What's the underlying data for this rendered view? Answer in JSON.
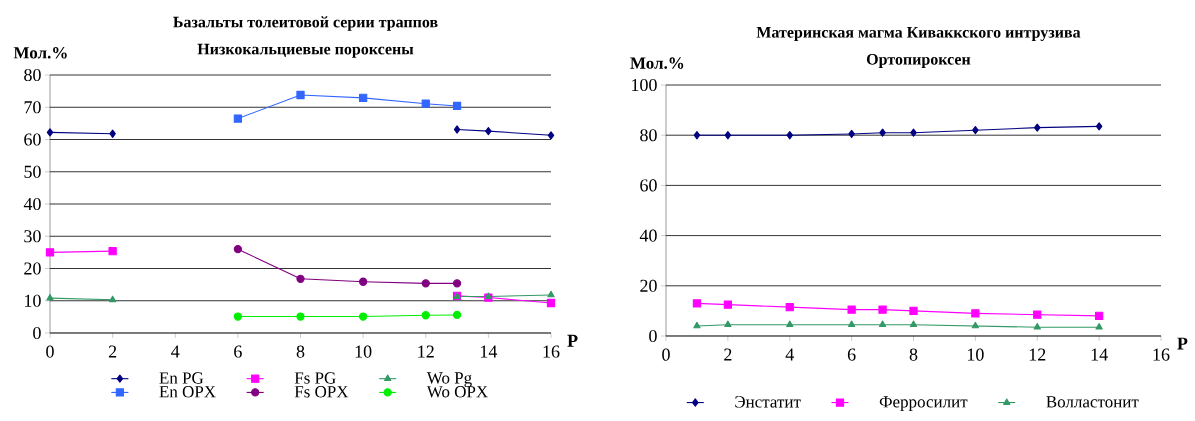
{
  "chart_data": [
    {
      "type": "line",
      "title": "Ьазальты толеитовой серии траппов",
      "subtitle": "Низкокальциевые пороксены",
      "xlabel": "P",
      "ylabel": "Мол.%",
      "x": [
        0,
        2,
        6,
        8,
        10,
        12,
        13,
        14,
        16
      ],
      "xlim": [
        0,
        16
      ],
      "ylim": [
        0,
        80
      ],
      "xticks": [
        0,
        2,
        4,
        6,
        8,
        10,
        12,
        14,
        16
      ],
      "yticks": [
        0,
        10,
        20,
        30,
        40,
        50,
        60,
        70,
        80
      ],
      "grid": "y",
      "legend": "bottom",
      "series": [
        {
          "name": "En PG",
          "color": "#000080",
          "marker": "diamond",
          "values": [
            62.2,
            61.8,
            null,
            null,
            null,
            null,
            63.1,
            62.6,
            61.3
          ]
        },
        {
          "name": "Fs PG",
          "color": "#ff00ff",
          "marker": "square",
          "values": [
            25.0,
            25.4,
            null,
            null,
            null,
            null,
            11.5,
            11.0,
            9.3
          ]
        },
        {
          "name": "Wo Pg",
          "color": "#339966",
          "marker": "triangle",
          "values": [
            10.8,
            10.3,
            null,
            null,
            null,
            null,
            11.3,
            11.3,
            11.8
          ]
        },
        {
          "name": "En OPX",
          "color": "#3366ff",
          "marker": "square",
          "values": [
            null,
            null,
            66.5,
            73.8,
            72.9,
            71.1,
            70.4,
            null,
            null
          ]
        },
        {
          "name": "Fs OPX",
          "color": "#800080",
          "marker": "circle",
          "values": [
            null,
            null,
            26.0,
            16.8,
            15.9,
            15.4,
            15.4,
            null,
            null
          ]
        },
        {
          "name": "Wo OPX",
          "color": "#00ee00",
          "marker": "circle",
          "values": [
            null,
            null,
            5.1,
            5.1,
            5.1,
            5.5,
            5.6,
            null,
            null
          ]
        }
      ]
    },
    {
      "type": "line",
      "title": "Материнская магма Киваккского интрузива",
      "subtitle": "Ортопироксен",
      "xlabel": "P",
      "ylabel": "Мол.%",
      "x": [
        1,
        2,
        4,
        6,
        7,
        8,
        10,
        12,
        14
      ],
      "xlim": [
        0,
        16
      ],
      "ylim": [
        0,
        100
      ],
      "xticks": [
        0,
        2,
        4,
        6,
        8,
        10,
        12,
        14,
        16
      ],
      "yticks": [
        0,
        20,
        40,
        60,
        80,
        100
      ],
      "grid": "y",
      "legend": "bottom",
      "series": [
        {
          "name": "Энстатит",
          "color": "#000080",
          "marker": "diamond",
          "values": [
            80,
            80,
            80,
            80.5,
            81,
            81,
            82,
            83,
            83.5
          ]
        },
        {
          "name": "Ферросилит",
          "color": "#ff00ff",
          "marker": "square",
          "values": [
            13,
            12.5,
            11.5,
            10.5,
            10.5,
            10,
            9,
            8.5,
            8
          ]
        },
        {
          "name": "Волластонит",
          "color": "#339966",
          "marker": "triangle",
          "values": [
            4,
            4.5,
            4.5,
            4.5,
            4.5,
            4.5,
            4,
            3.5,
            3.5
          ]
        }
      ]
    }
  ]
}
